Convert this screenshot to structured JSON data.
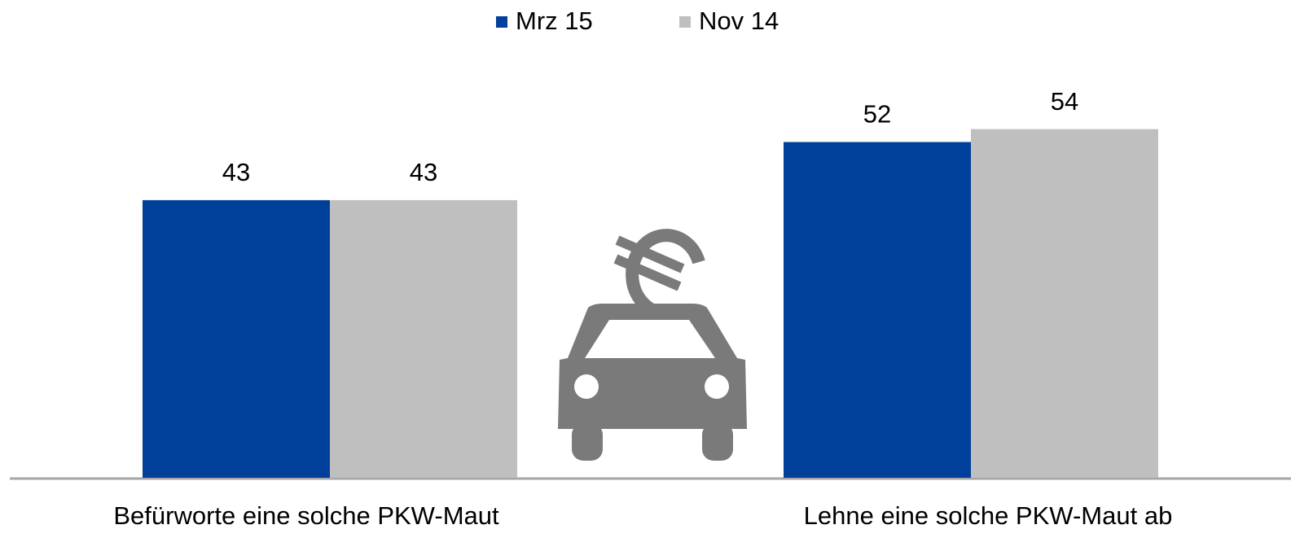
{
  "chart_data": {
    "type": "bar",
    "categories": [
      "Befürworte eine solche PKW-Maut",
      "Lehne eine solche PKW-Maut ab"
    ],
    "series": [
      {
        "name": "Mrz 15",
        "color": "#003f9a",
        "values": [
          43,
          52
        ]
      },
      {
        "name": "Nov 14",
        "color": "#bfbfbf",
        "values": [
          43,
          54
        ]
      }
    ],
    "ylim": [
      0,
      74
    ]
  }
}
